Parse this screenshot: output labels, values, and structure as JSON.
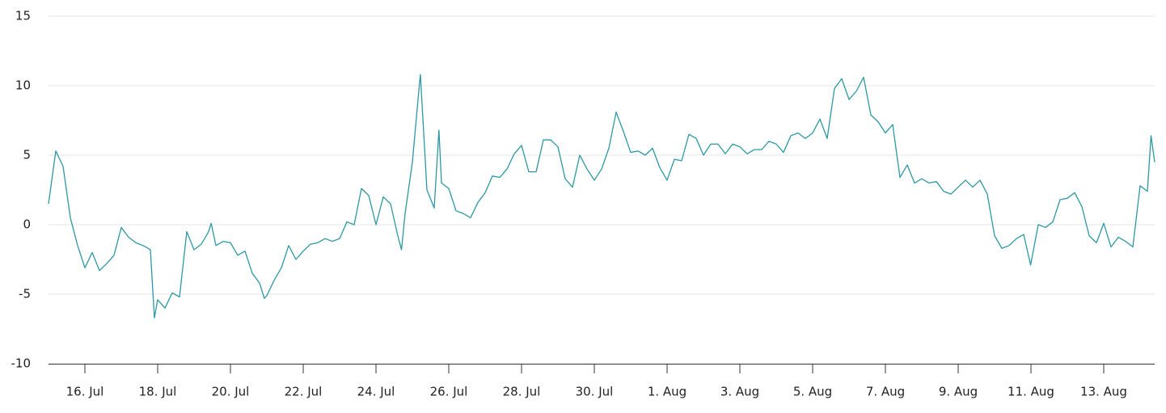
{
  "chart_data": {
    "type": "line",
    "x": [
      15.0,
      15.2,
      15.4,
      15.6,
      15.8,
      16.0,
      16.2,
      16.4,
      16.6,
      16.8,
      17.0,
      17.2,
      17.4,
      17.6,
      17.8,
      17.91,
      18.0,
      18.2,
      18.4,
      18.6,
      18.8,
      19.0,
      19.2,
      19.4,
      19.47,
      19.6,
      19.8,
      20.0,
      20.2,
      20.4,
      20.6,
      20.8,
      20.93,
      21.0,
      21.2,
      21.4,
      21.6,
      21.8,
      22.0,
      22.2,
      22.4,
      22.6,
      22.8,
      23.0,
      23.2,
      23.4,
      23.6,
      23.8,
      24.0,
      24.2,
      24.4,
      24.6,
      24.7,
      24.8,
      25.0,
      25.2,
      25.22,
      25.4,
      25.6,
      25.73,
      25.8,
      26.0,
      26.2,
      26.4,
      26.6,
      26.8,
      27.0,
      27.2,
      27.4,
      27.6,
      27.8,
      28.0,
      28.2,
      28.4,
      28.6,
      28.8,
      29.0,
      29.2,
      29.4,
      29.6,
      29.8,
      30.0,
      30.2,
      30.4,
      30.6,
      30.8,
      31.0,
      31.2,
      31.4,
      31.6,
      31.8,
      32.0,
      32.2,
      32.4,
      32.6,
      32.8,
      33.0,
      33.2,
      33.4,
      33.6,
      33.8,
      34.0,
      34.2,
      34.4,
      34.6,
      34.8,
      35.0,
      35.2,
      35.4,
      35.6,
      35.8,
      36.0,
      36.2,
      36.4,
      36.6,
      36.8,
      37.0,
      37.2,
      37.4,
      37.6,
      37.8,
      38.0,
      38.2,
      38.4,
      38.6,
      38.8,
      39.0,
      39.2,
      39.4,
      39.6,
      39.8,
      40.0,
      40.2,
      40.4,
      40.6,
      40.8,
      41.0,
      41.2,
      41.4,
      41.6,
      41.8,
      41.99,
      42.2,
      42.4,
      42.6,
      42.8,
      43.0,
      43.2,
      43.4,
      43.6,
      43.8,
      44.0,
      44.2,
      44.4,
      44.6,
      44.8,
      45.0,
      45.2,
      45.3,
      45.4
    ],
    "series": [
      {
        "color": "#2b98a3",
        "values": [
          1.5,
          5.3,
          4.2,
          0.5,
          -1.5,
          -3.1,
          -2,
          -3.3,
          -2.8,
          -2.2,
          -0.2,
          -0.9,
          -1.3,
          -1.5,
          -1.8,
          -6.7,
          -5.4,
          -6,
          -4.9,
          -5.2,
          -0.5,
          -1.8,
          -1.4,
          -0.5,
          0.1,
          -1.5,
          -1.2,
          -1.3,
          -2.2,
          -1.9,
          -3.5,
          -4.2,
          -5.3,
          -5.1,
          -4,
          -3.1,
          -1.5,
          -2.5,
          -1.9,
          -1.4,
          -1.3,
          -1,
          -1.2,
          -1,
          0.2,
          0,
          2.6,
          2.1,
          0,
          2,
          1.5,
          -0.8,
          -1.8,
          0.8,
          4.5,
          10.3,
          10.8,
          2.5,
          1.2,
          6.8,
          3,
          2.6,
          1,
          0.8,
          0.5,
          1.6,
          2.3,
          3.5,
          3.4,
          4,
          5.1,
          5.7,
          3.8,
          3.8,
          6.1,
          6.1,
          5.6,
          3.3,
          2.7,
          5,
          4,
          3.2,
          4,
          5.5,
          8.1,
          6.7,
          5.2,
          5.3,
          5,
          5.5,
          4.1,
          3.2,
          4.7,
          4.6,
          6.5,
          6.2,
          5,
          5.8,
          5.8,
          5.1,
          5.8,
          5.6,
          5.1,
          5.4,
          5.4,
          6,
          5.8,
          5.2,
          6.4,
          6.6,
          6.2,
          6.6,
          7.6,
          6.2,
          9.8,
          10.5,
          9,
          9.6,
          10.6,
          7.9,
          7.4,
          6.6,
          7.2,
          3.4,
          4.3,
          3,
          3.3,
          3,
          3.1,
          2.4,
          2.2,
          2.7,
          3.2,
          2.7,
          3.2,
          2.2,
          -0.8,
          -1.7,
          -1.5,
          -1,
          -0.7,
          -2.9,
          0,
          -0.2,
          0.2,
          1.8,
          1.9,
          2.3,
          1.3,
          -0.8,
          -1.3,
          0.1,
          -1.6,
          -0.9,
          -1.2,
          -1.6,
          2.8,
          2.4,
          6.4,
          4.5
        ]
      }
    ],
    "xlim": [
      15,
      45.4
    ],
    "xticks": [
      {
        "value": 16,
        "label": "16. Jul"
      },
      {
        "value": 18,
        "label": "18. Jul"
      },
      {
        "value": 20,
        "label": "20. Jul"
      },
      {
        "value": 22,
        "label": "22. Jul"
      },
      {
        "value": 24,
        "label": "24. Jul"
      },
      {
        "value": 26,
        "label": "26. Jul"
      },
      {
        "value": 28,
        "label": "28. Jul"
      },
      {
        "value": 30,
        "label": "30. Jul"
      },
      {
        "value": 32,
        "label": "1. Aug"
      },
      {
        "value": 34,
        "label": "3. Aug"
      },
      {
        "value": 36,
        "label": "5. Aug"
      },
      {
        "value": 38,
        "label": "7. Aug"
      },
      {
        "value": 40,
        "label": "9. Aug"
      },
      {
        "value": 42,
        "label": "11. Aug"
      },
      {
        "value": 44,
        "label": "13. Aug"
      }
    ],
    "ylim": [
      -10,
      15
    ],
    "yticks": [
      -10,
      -5,
      0,
      5,
      10,
      15
    ],
    "grid": true
  }
}
